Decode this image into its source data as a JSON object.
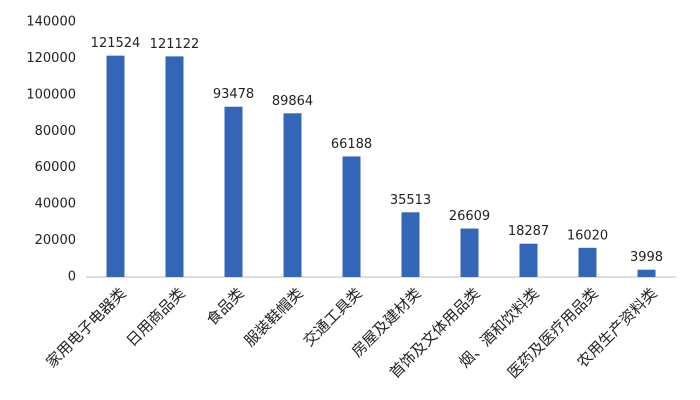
{
  "chart_data": {
    "type": "bar",
    "categories": [
      "家用电子电器类",
      "日用商品类",
      "食品类",
      "服装鞋帽类",
      "交通工具类",
      "房屋及建材类",
      "首饰及文体用品类",
      "烟、酒和饮料类",
      "医药及医疗用品类",
      "农用生产资料类"
    ],
    "values": [
      121524,
      121122,
      93478,
      89864,
      66188,
      35513,
      26609,
      18287,
      16020,
      3998
    ],
    "color": "#3466b8",
    "ylim": [
      0,
      140000
    ],
    "yticks": [
      0,
      20000,
      40000,
      60000,
      80000,
      100000,
      120000,
      140000
    ],
    "grid": false
  }
}
